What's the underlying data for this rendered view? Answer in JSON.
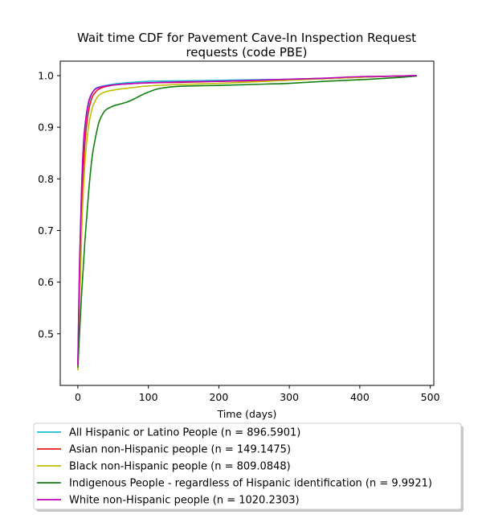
{
  "chart_data": {
    "type": "line",
    "title_lines": [
      "Wait time CDF for Pavement Cave-In Inspection Request",
      "requests (code PBE)"
    ],
    "xlabel": "Time (days)",
    "ylabel": "",
    "xlim": [
      -25,
      505
    ],
    "ylim": [
      0.4,
      1.028
    ],
    "xticks": [
      0,
      100,
      200,
      300,
      400,
      500
    ],
    "yticks": [
      0.5,
      0.6,
      0.7,
      0.8,
      0.9,
      1.0
    ],
    "xtick_labels": [
      "0",
      "100",
      "200",
      "300",
      "400",
      "500"
    ],
    "ytick_labels": [
      "0.5",
      "0.6",
      "0.7",
      "0.8",
      "0.9",
      "1.0"
    ],
    "grid": false,
    "legend_placement": "below",
    "series": [
      {
        "name": "All Hispanic or Latino People (n = 896.5901)",
        "color": "#17becf",
        "x": [
          0,
          2,
          5,
          8,
          12,
          16,
          20,
          25,
          30,
          40,
          60,
          100,
          150,
          200,
          250,
          300,
          350,
          400,
          450,
          480
        ],
        "y": [
          0.44,
          0.6,
          0.76,
          0.86,
          0.92,
          0.95,
          0.965,
          0.975,
          0.978,
          0.981,
          0.985,
          0.989,
          0.99,
          0.991,
          0.992,
          0.993,
          0.995,
          0.997,
          0.999,
          1.0
        ]
      },
      {
        "name": "Asian non-Hispanic people (n = 149.1475)",
        "color": "#e6191b",
        "x": [
          0,
          3,
          6,
          10,
          15,
          20,
          25,
          30,
          40,
          60,
          100,
          150,
          200,
          250,
          300,
          350,
          400,
          450,
          480
        ],
        "y": [
          0.44,
          0.62,
          0.76,
          0.87,
          0.93,
          0.957,
          0.968,
          0.974,
          0.979,
          0.983,
          0.986,
          0.987,
          0.989,
          0.99,
          0.992,
          0.994,
          0.997,
          0.999,
          1.0
        ]
      },
      {
        "name": "Black non-Hispanic people (n = 809.0848)",
        "color": "#bfbf00",
        "x": [
          0,
          3,
          6,
          10,
          15,
          20,
          25,
          30,
          40,
          60,
          80,
          100,
          150,
          200,
          250,
          300,
          350,
          400,
          450,
          480
        ],
        "y": [
          0.43,
          0.58,
          0.72,
          0.83,
          0.9,
          0.935,
          0.952,
          0.962,
          0.969,
          0.974,
          0.977,
          0.98,
          0.983,
          0.985,
          0.988,
          0.991,
          0.994,
          0.997,
          0.999,
          1.0
        ]
      },
      {
        "name": "Indigenous People - regardless of Hispanic identification (n = 9.9921)",
        "color": "#138012",
        "x": [
          0,
          5,
          10,
          15,
          20,
          25,
          30,
          35,
          40,
          50,
          60,
          70,
          80,
          90,
          100,
          110,
          120,
          140,
          160,
          200,
          250,
          300,
          350,
          400,
          450,
          480
        ],
        "y": [
          0.435,
          0.57,
          0.68,
          0.77,
          0.84,
          0.88,
          0.91,
          0.925,
          0.934,
          0.941,
          0.945,
          0.949,
          0.955,
          0.962,
          0.968,
          0.973,
          0.976,
          0.979,
          0.98,
          0.981,
          0.983,
          0.985,
          0.989,
          0.992,
          0.996,
          0.999
        ]
      },
      {
        "name": "White non-Hispanic people (n = 1020.2303)",
        "color": "#bf00bf",
        "x": [
          0,
          2,
          5,
          8,
          12,
          16,
          20,
          25,
          30,
          40,
          60,
          100,
          150,
          200,
          250,
          300,
          350,
          400,
          450,
          480
        ],
        "y": [
          0.44,
          0.61,
          0.77,
          0.87,
          0.925,
          0.953,
          0.966,
          0.974,
          0.977,
          0.98,
          0.983,
          0.986,
          0.988,
          0.989,
          0.991,
          0.993,
          0.995,
          0.998,
          0.999,
          1.0
        ]
      }
    ]
  }
}
